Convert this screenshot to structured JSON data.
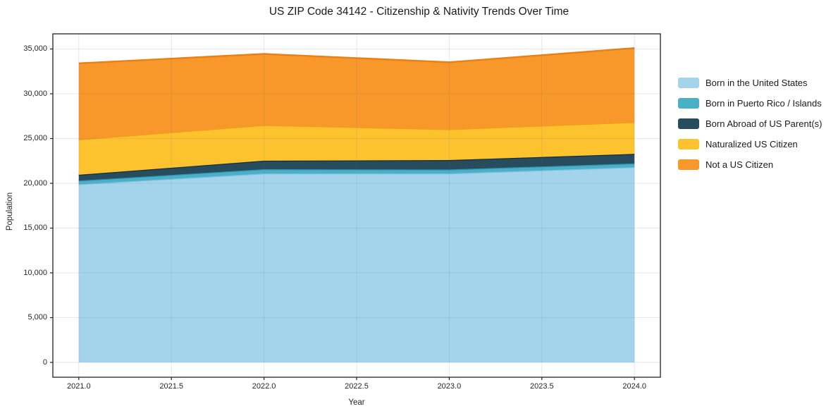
{
  "chart_data": {
    "type": "area",
    "stacked": true,
    "title": "US ZIP Code 34142 - Citizenship & Nativity Trends Over Time",
    "xlabel": "Year",
    "ylabel": "Population",
    "x": [
      2021,
      2022,
      2023,
      2024
    ],
    "series": [
      {
        "name": "Born in the United States",
        "color": "#a4d4ec",
        "edge_color": "#7fbede",
        "values": [
          19900,
          21100,
          21100,
          21800
        ]
      },
      {
        "name": "Born in Puerto Rico / Islands",
        "color": "#49b0c8",
        "edge_color": "#2e93ad",
        "values": [
          400,
          475,
          440,
          420
        ]
      },
      {
        "name": "Born Abroad of US Parent(s)",
        "color": "#264c5e",
        "edge_color": "#122f3f",
        "values": [
          650,
          950,
          1060,
          1060
        ]
      },
      {
        "name": "Naturalized US Citizen",
        "color": "#fdc32f",
        "edge_color": "#f09e17",
        "values": [
          3950,
          3975,
          3440,
          3550
        ]
      },
      {
        "name": "Not a US Citizen",
        "color": "#f8982b",
        "edge_color": "#e97f15",
        "values": [
          8500,
          7950,
          7480,
          8270
        ]
      }
    ],
    "totals_by_year": [
      33400,
      34450,
      33520,
      35100
    ],
    "x_ticks": {
      "values": [
        2021.0,
        2021.5,
        2022.0,
        2022.5,
        2023.0,
        2023.5,
        2024.0
      ],
      "labels": [
        "2021.0",
        "2021.5",
        "2022.0",
        "2022.5",
        "2023.0",
        "2023.5",
        "2024.0"
      ]
    },
    "y_ticks": {
      "values": [
        0,
        5000,
        10000,
        15000,
        20000,
        25000,
        30000,
        35000
      ],
      "labels": [
        "0",
        "5,000",
        "10,000",
        "15,000",
        "20,000",
        "25,000",
        "30,000",
        "35,000"
      ]
    },
    "xlim": [
      2020.86,
      2024.14
    ],
    "ylim": [
      -1650,
      36690
    ],
    "grid": true,
    "grid_color": "rgba(108,108,128,0.16)",
    "spine_color": "#222222",
    "legend_position": "right"
  }
}
